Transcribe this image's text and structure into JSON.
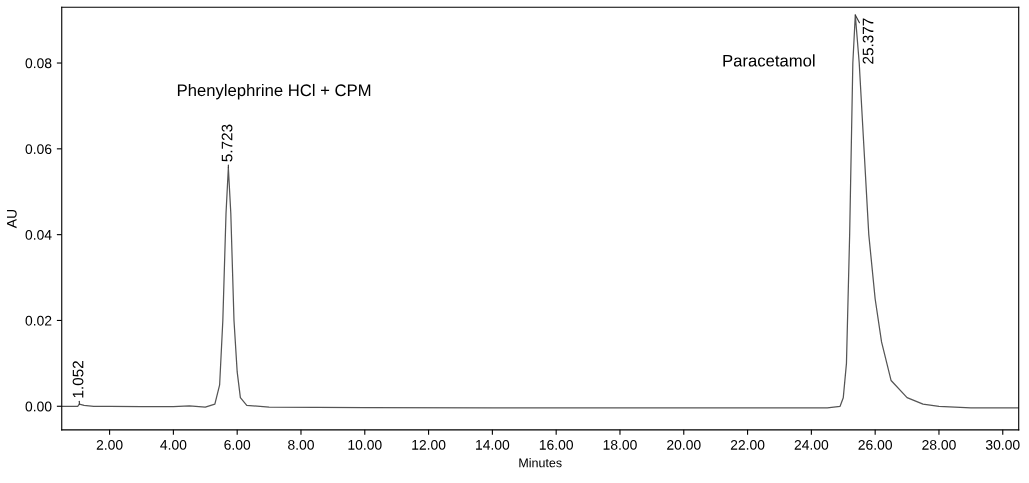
{
  "chart_data": {
    "type": "line",
    "xlabel": "Minutes",
    "ylabel": "AU",
    "xlim": [
      0.5,
      30.5
    ],
    "ylim": [
      -0.0055,
      0.093
    ],
    "xticks": [
      {
        "value": 2,
        "label": "2.00"
      },
      {
        "value": 4,
        "label": "4.00"
      },
      {
        "value": 6,
        "label": "6.00"
      },
      {
        "value": 8,
        "label": "8.00"
      },
      {
        "value": 10,
        "label": "10.00"
      },
      {
        "value": 12,
        "label": "12.00"
      },
      {
        "value": 14,
        "label": "14.00"
      },
      {
        "value": 16,
        "label": "16.00"
      },
      {
        "value": 18,
        "label": "18.00"
      },
      {
        "value": 20,
        "label": "20.00"
      },
      {
        "value": 22,
        "label": "22.00"
      },
      {
        "value": 24,
        "label": "24.00"
      },
      {
        "value": 26,
        "label": "26.00"
      },
      {
        "value": 28,
        "label": "28.00"
      },
      {
        "value": 30,
        "label": "30.00"
      }
    ],
    "yticks": [
      {
        "value": 0,
        "label": "0.00"
      },
      {
        "value": 0.02,
        "label": "0.02"
      },
      {
        "value": 0.04,
        "label": "0.04"
      },
      {
        "value": 0.06,
        "label": "0.06"
      },
      {
        "value": 0.08,
        "label": "0.08"
      }
    ],
    "grid": false,
    "legend": false,
    "marker": "none",
    "line_style": "solid",
    "series": [
      {
        "color": "#555555",
        "x": [
          0.5,
          1.0,
          1.052,
          1.2,
          1.5,
          2,
          3,
          4,
          4.5,
          5.0,
          5.3,
          5.45,
          5.55,
          5.65,
          5.723,
          5.8,
          5.9,
          6.0,
          6.1,
          6.3,
          7,
          10,
          14,
          20,
          24.5,
          24.9,
          25.0,
          25.1,
          25.2,
          25.3,
          25.377,
          25.5,
          25.65,
          25.8,
          26.0,
          26.2,
          26.5,
          27,
          27.5,
          28,
          29,
          30.5
        ],
        "values": [
          0,
          0,
          0.0005,
          0.0002,
          0,
          0,
          -0.0001,
          -0.0001,
          0.0001,
          -0.0002,
          0.0005,
          0.005,
          0.02,
          0.045,
          0.0556,
          0.045,
          0.02,
          0.008,
          0.002,
          0.0002,
          -0.0002,
          -0.0003,
          -0.0004,
          -0.0004,
          -0.0004,
          0,
          0.002,
          0.01,
          0.04,
          0.08,
          0.0912,
          0.08,
          0.06,
          0.04,
          0.025,
          0.015,
          0.006,
          0.002,
          0.0005,
          0,
          -0.0004,
          -0.0004
        ]
      }
    ],
    "annotations": [
      {
        "text": "1.052",
        "x": 1.052,
        "y": 0.0005
      },
      {
        "text": "5.723",
        "x": 5.723,
        "y": 0.0556
      },
      {
        "text": "25.377",
        "x": 25.377,
        "y": 0.0912
      },
      "Phenylephrine HCl + CPM",
      "Paracetamol"
    ]
  }
}
